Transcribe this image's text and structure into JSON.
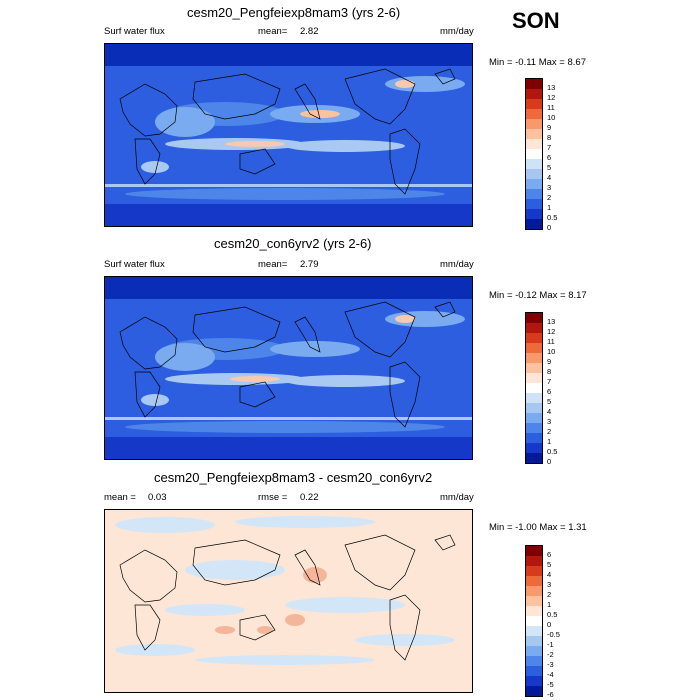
{
  "season": "SON",
  "panels": [
    {
      "title": "cesm20_Pengfeiexp8mam3 (yrs 2-6)",
      "left_label": "Surf water flux",
      "mean_label": "mean=",
      "mean_value": "2.82",
      "units": "mm/day",
      "minmax": "Min = -0.11 Max = 8.67",
      "colorbar_labels": [
        "13",
        "12",
        "11",
        "10",
        "9",
        "8",
        "7",
        "6",
        "5",
        "4",
        "3",
        "2",
        "1",
        "0.5",
        "0"
      ]
    },
    {
      "title": "cesm20_con6yrv2 (yrs 2-6)",
      "left_label": "Surf water flux",
      "mean_label": "mean=",
      "mean_value": "2.79",
      "units": "mm/day",
      "minmax": "Min = -0.12 Max = 8.17",
      "colorbar_labels": [
        "13",
        "12",
        "11",
        "10",
        "9",
        "8",
        "7",
        "6",
        "5",
        "4",
        "3",
        "2",
        "1",
        "0.5",
        "0"
      ]
    },
    {
      "title": "cesm20_Pengfeiexp8mam3 - cesm20_con6yrv2",
      "mean_label": "mean =",
      "mean_value": "0.03",
      "rmse_label": "rmse =",
      "rmse_value": "0.22",
      "units": "mm/day",
      "minmax": "Min = -1.00 Max = 1.31",
      "colorbar_labels": [
        "6",
        "5",
        "4",
        "3",
        "2",
        "1",
        "0.5",
        "0",
        "-0.5",
        "-1",
        "-2",
        "-3",
        "-4",
        "-5",
        "-6"
      ]
    }
  ],
  "colors": {
    "abs_colorbar": [
      "#7f0000",
      "#b2170f",
      "#d73a1c",
      "#ef6a3a",
      "#f7996b",
      "#fcc2a0",
      "#fde6d6",
      "#ffffff",
      "#cfe3f7",
      "#a6c8f0",
      "#7aaaf0",
      "#4d86e8",
      "#2b5fe0",
      "#1538c8",
      "#001a99"
    ],
    "diff_colorbar": [
      "#7f0000",
      "#b2170f",
      "#d73a1c",
      "#ef6a3a",
      "#f7996b",
      "#fcc2a0",
      "#fde6d6",
      "#ffffff",
      "#d3e6f7",
      "#a6c8f0",
      "#7aaaf0",
      "#4d86e8",
      "#2b5fe0",
      "#1538c8",
      "#001a99"
    ],
    "map_ocean_dry": "#0a2db8",
    "map_mid": "#2d5ee0",
    "map_wet": "#a9c9f2",
    "map_very_wet": "#f7c9b0",
    "diff_background": "#fde6d6",
    "diff_negative": "#d3e6f7",
    "diff_positive": "#f4b69a"
  }
}
